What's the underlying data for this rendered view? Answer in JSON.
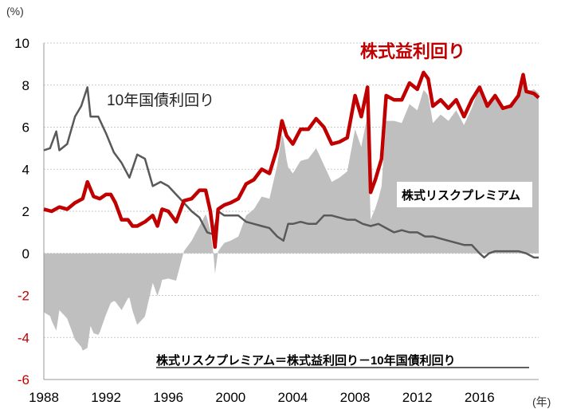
{
  "chart_data": {
    "type": "line",
    "y_unit": "(%)",
    "x_unit": "(年)",
    "ylim": [
      -6,
      10
    ],
    "yticks": [
      10,
      8,
      6,
      4,
      2,
      0,
      -2,
      -4,
      -6
    ],
    "xlim": [
      1988,
      2019.8
    ],
    "xticks": [
      1988,
      1992,
      1996,
      2000,
      2004,
      2008,
      2012,
      2016
    ],
    "grid": true,
    "annotations": {
      "earnings": "株式益利回り",
      "bond": "10年国債利回り",
      "premium": "株式リスクプレミアム",
      "formula": "株式リスクプレミアム＝株式益利回り－10年国債利回り"
    },
    "colors": {
      "earnings": "#c00000",
      "bond": "#595959",
      "premium": "#bfbfbf"
    },
    "series": [
      {
        "name": "株式益利回り",
        "x": [
          1988.0,
          1988.5,
          1989.0,
          1989.5,
          1990.0,
          1990.5,
          1990.8,
          1991.2,
          1991.6,
          1992.0,
          1992.3,
          1992.6,
          1993.0,
          1993.4,
          1993.7,
          1994.0,
          1994.5,
          1995.0,
          1995.3,
          1995.6,
          1996.0,
          1996.5,
          1997.0,
          1997.5,
          1998.0,
          1998.4,
          1998.7,
          1999.0,
          1999.2,
          1999.6,
          2000.0,
          2000.5,
          2001.0,
          2001.5,
          2002.0,
          2002.5,
          2003.0,
          2003.3,
          2003.6,
          2004.0,
          2004.5,
          2005.0,
          2005.5,
          2006.0,
          2006.5,
          2007.0,
          2007.5,
          2008.0,
          2008.4,
          2008.8,
          2009.0,
          2009.3,
          2009.7,
          2010.0,
          2010.5,
          2011.0,
          2011.5,
          2012.0,
          2012.4,
          2012.7,
          2013.0,
          2013.5,
          2014.0,
          2014.5,
          2015.0,
          2015.5,
          2016.0,
          2016.5,
          2017.0,
          2017.5,
          2018.0,
          2018.5,
          2018.8,
          2019.0,
          2019.5,
          2019.8
        ],
        "y": [
          2.1,
          2.0,
          2.2,
          2.1,
          2.4,
          2.6,
          3.4,
          2.7,
          2.6,
          2.8,
          2.8,
          2.4,
          1.6,
          1.6,
          1.3,
          1.3,
          1.5,
          1.8,
          1.3,
          2.1,
          2.0,
          1.5,
          2.5,
          2.6,
          3.0,
          3.0,
          2.0,
          0.3,
          2.1,
          2.3,
          2.4,
          2.6,
          3.3,
          3.5,
          4.0,
          3.8,
          5.0,
          6.3,
          5.6,
          5.2,
          5.9,
          5.9,
          6.4,
          6.0,
          5.2,
          5.3,
          5.5,
          7.5,
          6.5,
          7.9,
          2.9,
          3.5,
          4.5,
          7.5,
          7.3,
          7.3,
          8.1,
          7.8,
          8.6,
          8.3,
          7.0,
          7.3,
          6.9,
          7.3,
          6.5,
          7.3,
          7.9,
          7.0,
          7.5,
          6.9,
          7.0,
          7.5,
          8.5,
          7.7,
          7.6,
          7.4
        ]
      },
      {
        "name": "10年国債利回り",
        "x": [
          1988.0,
          1988.4,
          1988.8,
          1989.0,
          1989.5,
          1990.0,
          1990.4,
          1990.8,
          1991.0,
          1991.5,
          1992.0,
          1992.5,
          1993.0,
          1993.5,
          1994.0,
          1994.5,
          1995.0,
          1995.5,
          1996.0,
          1996.5,
          1997.0,
          1997.5,
          1998.0,
          1998.5,
          1998.9,
          1999.2,
          1999.6,
          2000.0,
          2000.5,
          2001.0,
          2001.5,
          2002.0,
          2002.5,
          2003.0,
          2003.4,
          2003.7,
          2004.0,
          2004.5,
          2005.0,
          2005.5,
          2006.0,
          2006.5,
          2007.0,
          2007.5,
          2008.0,
          2008.5,
          2009.0,
          2009.5,
          2010.0,
          2010.5,
          2011.0,
          2011.5,
          2012.0,
          2012.5,
          2013.0,
          2013.5,
          2014.0,
          2014.5,
          2015.0,
          2015.5,
          2016.0,
          2016.3,
          2016.6,
          2017.0,
          2017.5,
          2018.0,
          2018.5,
          2019.0,
          2019.5,
          2019.8
        ],
        "y": [
          4.9,
          5.0,
          5.8,
          4.9,
          5.2,
          6.5,
          7.0,
          7.9,
          6.5,
          6.5,
          5.7,
          4.8,
          4.3,
          3.6,
          4.7,
          4.5,
          3.2,
          3.4,
          3.2,
          2.8,
          2.4,
          2.0,
          1.7,
          1.0,
          0.9,
          2.0,
          1.8,
          1.8,
          1.8,
          1.5,
          1.4,
          1.3,
          1.2,
          0.8,
          0.6,
          1.4,
          1.4,
          1.5,
          1.4,
          1.4,
          1.8,
          1.8,
          1.7,
          1.6,
          1.6,
          1.4,
          1.3,
          1.4,
          1.2,
          1.0,
          1.1,
          1.0,
          1.0,
          0.8,
          0.8,
          0.7,
          0.6,
          0.5,
          0.4,
          0.4,
          0.0,
          -0.2,
          0.0,
          0.1,
          0.1,
          0.1,
          0.1,
          0.0,
          -0.2,
          -0.2
        ]
      }
    ]
  }
}
